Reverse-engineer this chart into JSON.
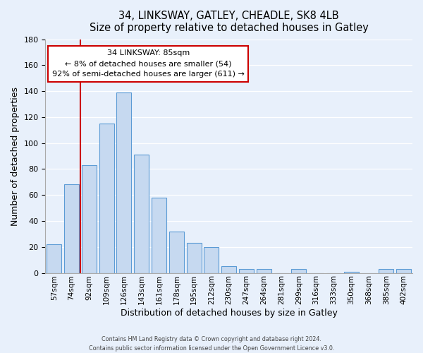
{
  "title": "34, LINKSWAY, GATLEY, CHEADLE, SK8 4LB",
  "subtitle": "Size of property relative to detached houses in Gatley",
  "xlabel": "Distribution of detached houses by size in Gatley",
  "ylabel": "Number of detached properties",
  "bar_labels": [
    "57sqm",
    "74sqm",
    "92sqm",
    "109sqm",
    "126sqm",
    "143sqm",
    "161sqm",
    "178sqm",
    "195sqm",
    "212sqm",
    "230sqm",
    "247sqm",
    "264sqm",
    "281sqm",
    "299sqm",
    "316sqm",
    "333sqm",
    "350sqm",
    "368sqm",
    "385sqm",
    "402sqm"
  ],
  "bar_values": [
    22,
    68,
    83,
    115,
    139,
    91,
    58,
    32,
    23,
    20,
    5,
    3,
    3,
    0,
    3,
    0,
    0,
    1,
    0,
    3,
    3
  ],
  "bar_color": "#c6d9f0",
  "bar_edge_color": "#5b9bd5",
  "ylim": [
    0,
    180
  ],
  "yticks": [
    0,
    20,
    40,
    60,
    80,
    100,
    120,
    140,
    160,
    180
  ],
  "vline_index": 2,
  "vline_color": "#cc0000",
  "annotation_title": "34 LINKSWAY: 85sqm",
  "annotation_line1": "← 8% of detached houses are smaller (54)",
  "annotation_line2": "92% of semi-detached houses are larger (611) →",
  "footer_line1": "Contains HM Land Registry data © Crown copyright and database right 2024.",
  "footer_line2": "Contains public sector information licensed under the Open Government Licence v3.0.",
  "bg_color": "#e8f0fb",
  "annotation_box_color": "#ffffff",
  "annotation_box_edge": "#cc0000"
}
